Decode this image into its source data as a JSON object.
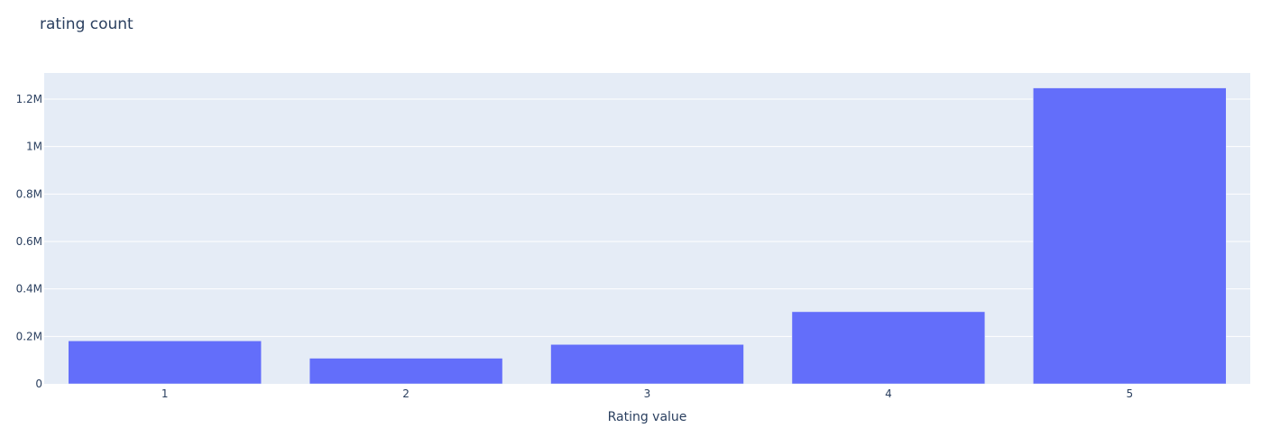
{
  "chart_data": {
    "type": "bar",
    "title": "rating count",
    "xlabel": "Rating value",
    "ylabel": "",
    "categories": [
      "1",
      "2",
      "3",
      "4",
      "5"
    ],
    "values": [
      181000,
      108000,
      166000,
      304000,
      1247000
    ],
    "ylim": [
      0,
      1310000
    ],
    "yticks": [
      0,
      200000,
      400000,
      600000,
      800000,
      1000000,
      1200000
    ],
    "ytick_labels": [
      "0",
      "0.2M",
      "0.4M",
      "0.6M",
      "0.8M",
      "1M",
      "1.2M"
    ],
    "grid": true,
    "legend": "none",
    "colors": {
      "bar": "#636efa",
      "plot_background": "#e5ecf6",
      "gridline": "#ffffff",
      "text": "#2a3f5f"
    }
  }
}
